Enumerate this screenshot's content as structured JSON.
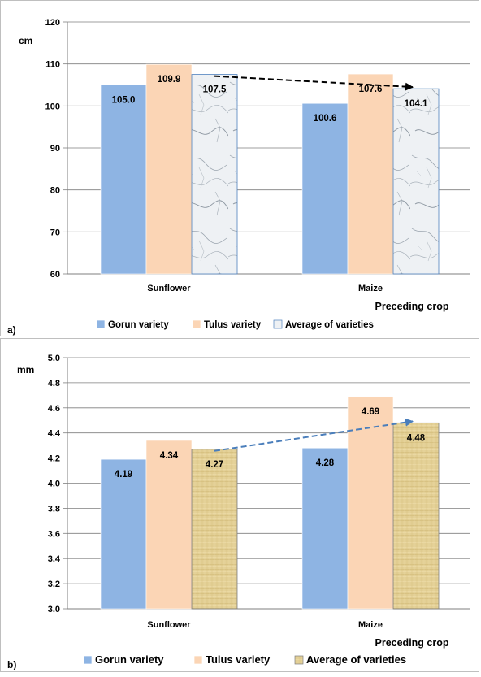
{
  "colors": {
    "gorun": "#8eb4e3",
    "tulus": "#fbd5b5",
    "average_a": "#e6eaef",
    "average_b": "#e6d49b",
    "arrow_a": "#000000",
    "arrow_b": "#4a7ebb",
    "grid": "#7f7f7f"
  },
  "chart_data": [
    {
      "type": "bar",
      "panel_label": "a)",
      "unit": "cm",
      "xlabel": "Preceding crop",
      "categories": [
        "Sunflower",
        "Maize"
      ],
      "series": [
        {
          "name": "Gorun variety",
          "values": [
            105.0,
            100.6
          ],
          "labels": [
            "105.0",
            "100.6"
          ],
          "color": "#8eb4e3"
        },
        {
          "name": "Tulus variety",
          "values": [
            109.9,
            107.6
          ],
          "labels": [
            "109.9",
            "107.6"
          ],
          "color": "#fbd5b5"
        },
        {
          "name": "Average of varieties",
          "values": [
            107.5,
            104.1
          ],
          "labels": [
            "107.5",
            "104.1"
          ],
          "color": "#e6eaef",
          "pattern": "marble"
        }
      ],
      "ylim": [
        60,
        120
      ],
      "yticks": [
        "60",
        "70",
        "80",
        "90",
        "100",
        "110",
        "120"
      ],
      "grid": true,
      "legend": "bottom",
      "trend_arrow": {
        "series": "Average of varieties",
        "style": "dashed",
        "color": "#000000"
      }
    },
    {
      "type": "bar",
      "panel_label": "b)",
      "unit": "mm",
      "xlabel": "Preceding crop",
      "categories": [
        "Sunflower",
        "Maize"
      ],
      "series": [
        {
          "name": "Gorun variety",
          "values": [
            4.19,
            4.28
          ],
          "labels": [
            "4.19",
            "4.28"
          ],
          "color": "#8eb4e3"
        },
        {
          "name": "Tulus variety",
          "values": [
            4.34,
            4.69
          ],
          "labels": [
            "4.34",
            "4.69"
          ],
          "color": "#fbd5b5"
        },
        {
          "name": "Average of varieties",
          "values": [
            4.27,
            4.48
          ],
          "labels": [
            "4.27",
            "4.48"
          ],
          "color": "#e6d49b",
          "pattern": "papyrus"
        }
      ],
      "ylim": [
        3.0,
        5.0
      ],
      "yticks": [
        "3.0",
        "3.2",
        "3.4",
        "3.6",
        "3.8",
        "4.0",
        "4.2",
        "4.4",
        "4.6",
        "4.8",
        "5.0"
      ],
      "grid": true,
      "legend": "bottom",
      "trend_arrow": {
        "series": "Average of varieties",
        "style": "dashed",
        "color": "#4a7ebb"
      }
    }
  ]
}
